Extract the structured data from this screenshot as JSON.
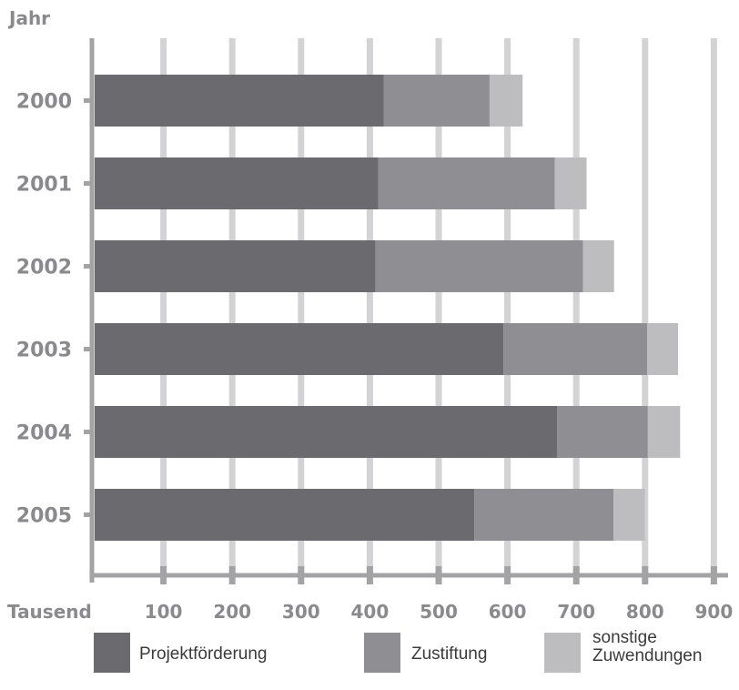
{
  "chart_data": {
    "type": "bar",
    "orientation": "horizontal",
    "stacked": true,
    "ylabel": "Jahr",
    "xlabel": "Tausend",
    "categories": [
      "2000",
      "2001",
      "2002",
      "2003",
      "2004",
      "2005"
    ],
    "series": [
      {
        "name": "Projektförderung",
        "color": "#6b6b6f",
        "values": [
          420,
          412,
          408,
          594,
          672,
          552
        ]
      },
      {
        "name": "Zustiftung",
        "color": "#8f8f93",
        "values": [
          154,
          257,
          302,
          209,
          132,
          202
        ]
      },
      {
        "name": "sonstige Zuwendungen",
        "color": "#bdbdbf",
        "values": [
          48,
          46,
          45,
          45,
          47,
          46
        ]
      }
    ],
    "x_ticks": [
      "100",
      "200",
      "300",
      "400",
      "500",
      "600",
      "700",
      "800",
      "900"
    ],
    "xlim": [
      0,
      920
    ],
    "grid": true,
    "legend_position": "bottom"
  }
}
